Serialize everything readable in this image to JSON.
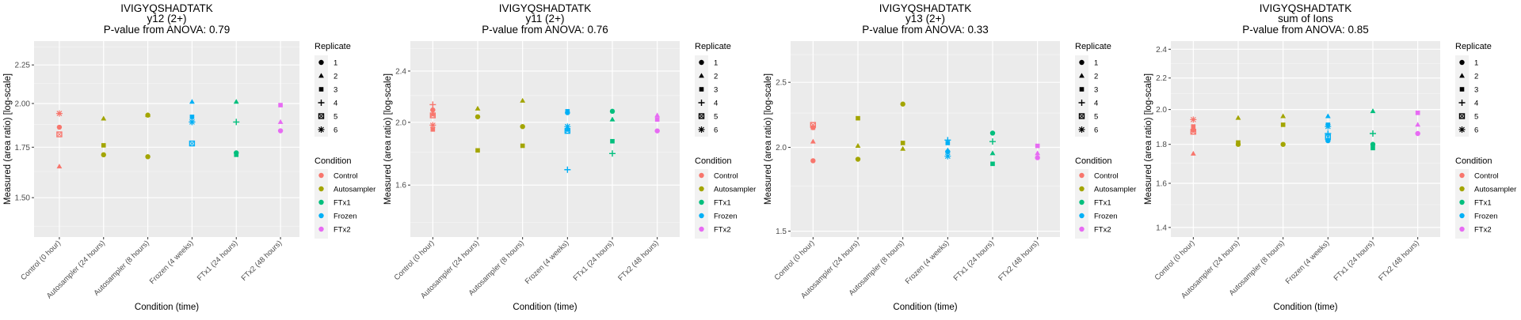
{
  "figure": {
    "legend": {
      "replicate_title": "Replicate",
      "replicates": [
        {
          "label": "1",
          "shape": "circle"
        },
        {
          "label": "2",
          "shape": "triangle"
        },
        {
          "label": "3",
          "shape": "square"
        },
        {
          "label": "4",
          "shape": "plus"
        },
        {
          "label": "5",
          "shape": "square-cross"
        },
        {
          "label": "6",
          "shape": "asterisk"
        }
      ],
      "condition_title": "Condition",
      "conditions": [
        {
          "label": "Control",
          "color": "#F8766D"
        },
        {
          "label": "Autosampler",
          "color": "#A3A500"
        },
        {
          "label": "FTx1",
          "color": "#00BF7D"
        },
        {
          "label": "Frozen",
          "color": "#00B0F6"
        },
        {
          "label": "FTx2",
          "color": "#E76BF3"
        }
      ]
    }
  },
  "chart_data": [
    {
      "type": "scatter",
      "title": "IVIGYQSHADTATK",
      "subtitle": "y12 (2+)",
      "pvalue_label": "P-value from ANOVA: 0.79",
      "xlabel": "Condition (time)",
      "ylabel": "Measured (area ratio) [log-scale]",
      "yscale": "log",
      "ylim": [
        1.33,
        2.42
      ],
      "yticks": [
        1.5,
        1.75,
        2.0,
        2.25
      ],
      "ytick_labels": [
        "1.50",
        "1.75",
        "2.00",
        "2.25"
      ],
      "yminor": [
        1.375,
        1.625,
        1.875,
        2.125,
        2.375
      ],
      "categories": [
        "Control (0 hour)",
        "Autosampler (24 hours)",
        "Autosampler (8 hours)",
        "Frozen (4 weeks)",
        "FTx1 (24 hours)",
        "FTx2 (48 hours)"
      ],
      "category_condition": [
        "Control",
        "Autosampler",
        "Autosampler",
        "Frozen",
        "FTx1",
        "FTx2"
      ],
      "points": [
        {
          "cat": 0,
          "rep": "6",
          "y": 1.94
        },
        {
          "cat": 0,
          "rep": "1",
          "y": 1.86
        },
        {
          "cat": 0,
          "rep": "5",
          "y": 1.82
        },
        {
          "cat": 0,
          "rep": "2",
          "y": 1.65
        },
        {
          "cat": 1,
          "rep": "2",
          "y": 1.91
        },
        {
          "cat": 1,
          "rep": "3",
          "y": 1.76
        },
        {
          "cat": 1,
          "rep": "1",
          "y": 1.71
        },
        {
          "cat": 2,
          "rep": "2",
          "y": 1.93
        },
        {
          "cat": 2,
          "rep": "1",
          "y": 1.93
        },
        {
          "cat": 2,
          "rep": "1",
          "y": 1.7
        },
        {
          "cat": 3,
          "rep": "2",
          "y": 2.01
        },
        {
          "cat": 3,
          "rep": "3",
          "y": 1.92
        },
        {
          "cat": 3,
          "rep": "6",
          "y": 1.89
        },
        {
          "cat": 3,
          "rep": "4",
          "y": 1.89
        },
        {
          "cat": 3,
          "rep": "5",
          "y": 1.77
        },
        {
          "cat": 4,
          "rep": "2",
          "y": 2.01
        },
        {
          "cat": 4,
          "rep": "4",
          "y": 1.89
        },
        {
          "cat": 4,
          "rep": "1",
          "y": 1.72
        },
        {
          "cat": 4,
          "rep": "3",
          "y": 1.71
        },
        {
          "cat": 5,
          "rep": "3",
          "y": 1.99
        },
        {
          "cat": 5,
          "rep": "2",
          "y": 1.89
        },
        {
          "cat": 5,
          "rep": "1",
          "y": 1.84
        }
      ]
    },
    {
      "type": "scatter",
      "title": "IVIGYQSHADTATK",
      "subtitle": "y11 (2+)",
      "pvalue_label": "P-value from ANOVA: 0.76",
      "xlabel": "Condition (time)",
      "ylabel": "Measured (area ratio) [log-scale]",
      "yscale": "log",
      "ylim": [
        1.33,
        2.67
      ],
      "yticks": [
        1.6,
        2.0,
        2.4
      ],
      "ytick_labels": [
        "1.6",
        "2.0",
        "2.4"
      ],
      "yminor": [
        1.4,
        1.8,
        2.2,
        2.6
      ],
      "categories": [
        "Control (0 hour)",
        "Autosampler (24 hours)",
        "Autosampler (8 hours)",
        "Frozen (4 weeks)",
        "FTx1 (24 hours)",
        "FTx2 (48 hours)"
      ],
      "category_condition": [
        "Control",
        "Autosampler",
        "Autosampler",
        "Frozen",
        "FTx1",
        "FTx2"
      ],
      "points": [
        {
          "cat": 0,
          "rep": "4",
          "y": 2.13
        },
        {
          "cat": 0,
          "rep": "1",
          "y": 2.09
        },
        {
          "cat": 0,
          "rep": "2",
          "y": 2.06
        },
        {
          "cat": 0,
          "rep": "5",
          "y": 2.05
        },
        {
          "cat": 0,
          "rep": "6",
          "y": 1.98
        },
        {
          "cat": 0,
          "rep": "3",
          "y": 1.95
        },
        {
          "cat": 1,
          "rep": "2",
          "y": 2.1
        },
        {
          "cat": 1,
          "rep": "1",
          "y": 2.04
        },
        {
          "cat": 1,
          "rep": "3",
          "y": 1.81
        },
        {
          "cat": 2,
          "rep": "2",
          "y": 2.16
        },
        {
          "cat": 2,
          "rep": "1",
          "y": 1.97
        },
        {
          "cat": 2,
          "rep": "3",
          "y": 1.84
        },
        {
          "cat": 3,
          "rep": "3",
          "y": 2.08
        },
        {
          "cat": 3,
          "rep": "1",
          "y": 2.07
        },
        {
          "cat": 3,
          "rep": "6",
          "y": 1.97
        },
        {
          "cat": 3,
          "rep": "2",
          "y": 1.95
        },
        {
          "cat": 3,
          "rep": "5",
          "y": 1.94
        },
        {
          "cat": 3,
          "rep": "4",
          "y": 1.69
        },
        {
          "cat": 4,
          "rep": "1",
          "y": 2.08
        },
        {
          "cat": 4,
          "rep": "2",
          "y": 2.02
        },
        {
          "cat": 4,
          "rep": "3",
          "y": 1.87
        },
        {
          "cat": 4,
          "rep": "4",
          "y": 1.79
        },
        {
          "cat": 5,
          "rep": "2",
          "y": 2.05
        },
        {
          "cat": 5,
          "rep": "3",
          "y": 2.02
        },
        {
          "cat": 5,
          "rep": "1",
          "y": 1.94
        }
      ]
    },
    {
      "type": "scatter",
      "title": "IVIGYQSHADTATK",
      "subtitle": "y13 (2+)",
      "pvalue_label": "P-value from ANOVA: 0.33",
      "xlabel": "Condition (time)",
      "ylabel": "Measured (area ratio) [log-scale]",
      "yscale": "log",
      "ylim": [
        1.47,
        2.88
      ],
      "yticks": [
        1.5,
        2.0,
        2.5
      ],
      "ytick_labels": [
        "1.5",
        "2.0",
        "2.5"
      ],
      "yminor": [
        1.75,
        2.25,
        2.75
      ],
      "categories": [
        "Control (0 hour)",
        "Autosampler (24 hours)",
        "Autosampler (8 hours)",
        "Frozen (4 weeks)",
        "FTx1 (24 hours)",
        "FTx2 (48 hours)"
      ],
      "category_condition": [
        "Control",
        "Autosampler",
        "Autosampler",
        "Frozen",
        "FTx1",
        "FTx2"
      ],
      "points": [
        {
          "cat": 0,
          "rep": "5",
          "y": 2.16
        },
        {
          "cat": 0,
          "rep": "3",
          "y": 2.14
        },
        {
          "cat": 0,
          "rep": "1",
          "y": 2.14
        },
        {
          "cat": 0,
          "rep": "2",
          "y": 2.04
        },
        {
          "cat": 0,
          "rep": "1",
          "y": 1.91
        },
        {
          "cat": 1,
          "rep": "3",
          "y": 2.21
        },
        {
          "cat": 1,
          "rep": "2",
          "y": 2.01
        },
        {
          "cat": 1,
          "rep": "1",
          "y": 1.92
        },
        {
          "cat": 2,
          "rep": "1",
          "y": 2.32
        },
        {
          "cat": 2,
          "rep": "3",
          "y": 2.03
        },
        {
          "cat": 2,
          "rep": "2",
          "y": 1.99
        },
        {
          "cat": 3,
          "rep": "4",
          "y": 2.05
        },
        {
          "cat": 3,
          "rep": "3",
          "y": 2.03
        },
        {
          "cat": 3,
          "rep": "2",
          "y": 1.98
        },
        {
          "cat": 3,
          "rep": "1",
          "y": 1.97
        },
        {
          "cat": 3,
          "rep": "6",
          "y": 1.94
        },
        {
          "cat": 4,
          "rep": "1",
          "y": 2.1
        },
        {
          "cat": 4,
          "rep": "4",
          "y": 2.04
        },
        {
          "cat": 4,
          "rep": "2",
          "y": 1.96
        },
        {
          "cat": 4,
          "rep": "3",
          "y": 1.89
        },
        {
          "cat": 5,
          "rep": "3",
          "y": 2.01
        },
        {
          "cat": 5,
          "rep": "2",
          "y": 1.96
        },
        {
          "cat": 5,
          "rep": "1",
          "y": 1.93
        }
      ]
    },
    {
      "type": "scatter",
      "title": "IVIGYQSHADTATK",
      "subtitle": "sum of Ions",
      "pvalue_label": "P-value from ANOVA: 0.85",
      "xlabel": "Condition (time)",
      "ylabel": "Measured (area ratio) [log-scale]",
      "yscale": "log",
      "ylim": [
        1.36,
        2.46
      ],
      "yticks": [
        1.4,
        1.6,
        1.8,
        2.0,
        2.2,
        2.4
      ],
      "ytick_labels": [
        "1.4",
        "1.6",
        "1.8",
        "2.0",
        "2.2",
        "2.4"
      ],
      "yminor": [
        1.5,
        1.7,
        1.9,
        2.1,
        2.3
      ],
      "categories": [
        "Control (0 hour)",
        "Autosampler (24 hours)",
        "Autosampler (8 hours)",
        "Frozen (4 weeks)",
        "FTx1 (24 hours)",
        "FTx2 (48 hours)"
      ],
      "category_condition": [
        "Control",
        "Autosampler",
        "Autosampler",
        "Frozen",
        "FTx1",
        "FTx2"
      ],
      "points": [
        {
          "cat": 0,
          "rep": "6",
          "y": 1.94
        },
        {
          "cat": 0,
          "rep": "3",
          "y": 1.9
        },
        {
          "cat": 0,
          "rep": "1",
          "y": 1.88
        },
        {
          "cat": 0,
          "rep": "5",
          "y": 1.87
        },
        {
          "cat": 0,
          "rep": "2",
          "y": 1.75
        },
        {
          "cat": 1,
          "rep": "2",
          "y": 1.95
        },
        {
          "cat": 1,
          "rep": "3",
          "y": 1.81
        },
        {
          "cat": 1,
          "rep": "1",
          "y": 1.8
        },
        {
          "cat": 2,
          "rep": "2",
          "y": 1.96
        },
        {
          "cat": 2,
          "rep": "3",
          "y": 1.91
        },
        {
          "cat": 2,
          "rep": "1",
          "y": 1.8
        },
        {
          "cat": 3,
          "rep": "2",
          "y": 1.96
        },
        {
          "cat": 3,
          "rep": "3",
          "y": 1.91
        },
        {
          "cat": 3,
          "rep": "6",
          "y": 1.9
        },
        {
          "cat": 3,
          "rep": "4",
          "y": 1.86
        },
        {
          "cat": 3,
          "rep": "5",
          "y": 1.84
        },
        {
          "cat": 3,
          "rep": "1",
          "y": 1.82
        },
        {
          "cat": 4,
          "rep": "2",
          "y": 1.99
        },
        {
          "cat": 4,
          "rep": "4",
          "y": 1.86
        },
        {
          "cat": 4,
          "rep": "1",
          "y": 1.8
        },
        {
          "cat": 4,
          "rep": "3",
          "y": 1.78
        },
        {
          "cat": 5,
          "rep": "3",
          "y": 1.98
        },
        {
          "cat": 5,
          "rep": "2",
          "y": 1.91
        },
        {
          "cat": 5,
          "rep": "1",
          "y": 1.86
        }
      ]
    }
  ]
}
